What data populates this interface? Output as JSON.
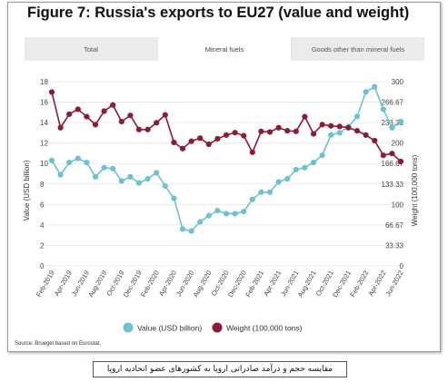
{
  "title": "Figure 7: Russia's exports to EU27 (value and weight)",
  "tabs": [
    {
      "label": "Total",
      "active": false
    },
    {
      "label": "Mineral fuels",
      "active": true
    },
    {
      "label": "Goods other than mineral fuels",
      "active": false
    }
  ],
  "source": "Source: Bruegel based on Eurostat.",
  "caption": "مقایسه حجم و درآمد صادراتی اروپا به کشورهای عضو اتحادیه اروپا",
  "chart_data": {
    "type": "line",
    "y_left": {
      "label": "Value (USD billion)",
      "ticks": [
        "18",
        "16",
        "14",
        "12",
        "10",
        "8",
        "6",
        "4",
        "2",
        "0"
      ],
      "range": [
        0,
        18
      ]
    },
    "y_right": {
      "label": "Weight (100,000 tons)",
      "ticks": [
        "300",
        "266.67",
        "233.33",
        "200",
        "166.67",
        "133.33",
        "100",
        "66.67",
        "33.33",
        "0"
      ],
      "range": [
        0,
        300
      ]
    },
    "x_tick_labels": [
      "Feb-2019",
      "Apr-2019",
      "Jun-2019",
      "Aug-2019",
      "Oct-2019",
      "Dec-2019",
      "Feb-2020",
      "Apr-2020",
      "Jun-2020",
      "Aug-2020",
      "Oct-2020",
      "Dec-2020",
      "Feb-2021",
      "Apr-2021",
      "Jun-2021",
      "Aug-2021",
      "Oct-2021",
      "Dec-2021",
      "Feb-2022",
      "Apr-2022",
      "Jun-2022"
    ],
    "x": [
      "Feb-2019",
      "Mar-2019",
      "Apr-2019",
      "May-2019",
      "Jun-2019",
      "Jul-2019",
      "Aug-2019",
      "Sep-2019",
      "Oct-2019",
      "Nov-2019",
      "Dec-2019",
      "Jan-2020",
      "Feb-2020",
      "Mar-2020",
      "Apr-2020",
      "May-2020",
      "Jun-2020",
      "Jul-2020",
      "Aug-2020",
      "Sep-2020",
      "Oct-2020",
      "Nov-2020",
      "Dec-2020",
      "Jan-2021",
      "Feb-2021",
      "Mar-2021",
      "Apr-2021",
      "May-2021",
      "Jun-2021",
      "Jul-2021",
      "Aug-2021",
      "Sep-2021",
      "Oct-2021",
      "Nov-2021",
      "Dec-2021",
      "Jan-2022",
      "Feb-2022",
      "Mar-2022",
      "Apr-2022",
      "May-2022",
      "Jun-2022"
    ],
    "series": [
      {
        "name": "Value (USD billion)",
        "axis": "left",
        "color": "#6ec1cf",
        "type": "line",
        "values": [
          10.3,
          8.9,
          10.1,
          10.5,
          10.1,
          8.7,
          9.6,
          9.5,
          8.3,
          8.7,
          8.1,
          8.5,
          9.1,
          7.8,
          6.6,
          3.6,
          3.4,
          4.3,
          4.9,
          5.4,
          5.1,
          5.1,
          5.3,
          6.5,
          7.2,
          7.2,
          8.2,
          8.5,
          9.4,
          9.6,
          10.1,
          10.8,
          12.8,
          13.0,
          13.6,
          14.6,
          17.0,
          17.5,
          15.3,
          13.5,
          14.1
        ]
      },
      {
        "name": "Weight (100,000 tons)",
        "axis": "right",
        "color": "#8b1c36",
        "type": "line",
        "values": [
          283,
          225,
          247,
          255,
          243,
          230,
          252,
          262,
          235,
          245,
          222,
          222,
          233,
          246,
          201,
          191,
          203,
          208,
          198,
          207,
          213,
          217,
          212,
          185,
          219,
          218,
          225,
          220,
          219,
          243,
          215,
          230,
          228,
          227,
          225,
          220,
          213,
          204,
          180,
          183,
          170
        ]
      }
    ],
    "legend": {
      "position": "bottom-center"
    },
    "grid": true
  }
}
